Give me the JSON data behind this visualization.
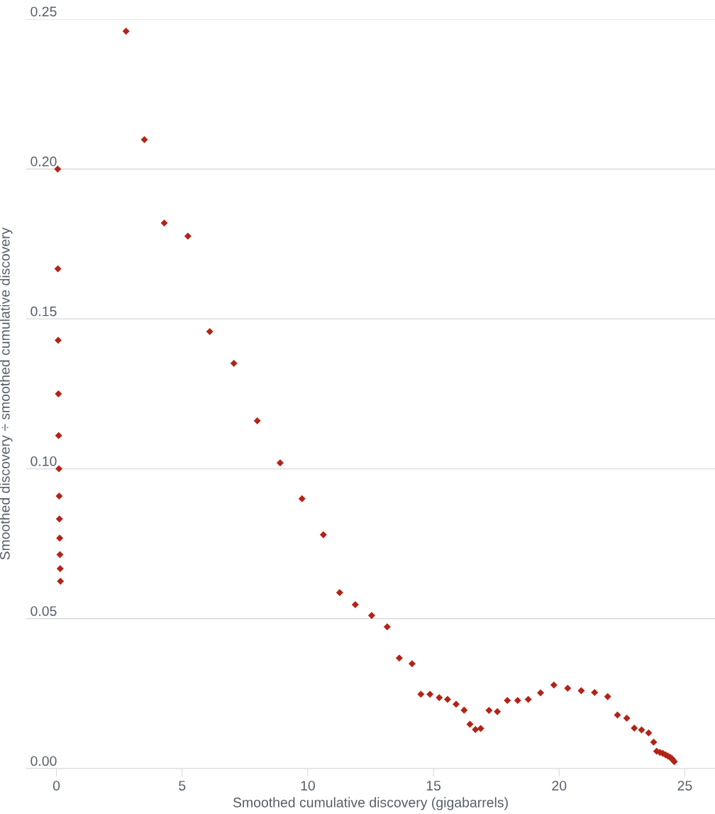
{
  "chart_data": {
    "type": "scatter",
    "xlabel": "Smoothed cumulative discovery (gigabarrels)",
    "ylabel": "Smoothed discovery ÷ smoothed cumulative discovery",
    "marker": "diamond",
    "grid": "y",
    "legend": false,
    "xlim": [
      -1.2,
      26.2
    ],
    "xticks": [
      0,
      5,
      10,
      15,
      20,
      25
    ],
    "ylim": [
      0,
      0.25
    ],
    "yticks": [
      {
        "value": 0,
        "label": "0.00"
      },
      {
        "value": 0.05,
        "label": "0.05"
      },
      {
        "value": 0.1,
        "label": "0.10"
      },
      {
        "value": 0.15,
        "label": "0.15"
      },
      {
        "value": 0.2,
        "label": "0.20"
      },
      {
        "value": 0.25,
        "label": "0.25"
      }
    ],
    "series": [
      {
        "color": "#b22418",
        "x": [
          0.05,
          0.06,
          0.07,
          0.08,
          0.09,
          0.1,
          0.11,
          0.12,
          0.13,
          0.14,
          0.15,
          0.16,
          2.77,
          3.5,
          4.29,
          5.23,
          6.1,
          7.06,
          7.99,
          8.9,
          9.77,
          10.62,
          11.27,
          11.89,
          12.54,
          13.16,
          13.64,
          14.15,
          14.5,
          14.86,
          15.23,
          15.56,
          15.9,
          16.22,
          16.45,
          16.67,
          16.88,
          17.21,
          17.54,
          17.94,
          18.35,
          18.77,
          19.26,
          19.79,
          20.34,
          20.88,
          21.41,
          21.93,
          22.32,
          22.69,
          22.99,
          23.28,
          23.56,
          23.76,
          23.88,
          24.01,
          24.12,
          24.23,
          24.32,
          24.41,
          24.48,
          24.54,
          24.58
        ],
        "values": [
          0.2,
          0.1667,
          0.1429,
          0.125,
          0.1111,
          0.1,
          0.0909,
          0.0833,
          0.0769,
          0.0714,
          0.0667,
          0.0625,
          0.246,
          0.2098,
          0.182,
          0.1776,
          0.1458,
          0.1352,
          0.116,
          0.102,
          0.09,
          0.078,
          0.0587,
          0.0547,
          0.0511,
          0.0473,
          0.0369,
          0.035,
          0.0248,
          0.0248,
          0.0237,
          0.0231,
          0.0215,
          0.0195,
          0.0148,
          0.013,
          0.0134,
          0.0194,
          0.019,
          0.0227,
          0.0227,
          0.0231,
          0.0253,
          0.0279,
          0.0268,
          0.026,
          0.0254,
          0.024,
          0.0179,
          0.0168,
          0.0135,
          0.0129,
          0.0119,
          0.0088,
          0.0058,
          0.0054,
          0.0051,
          0.0046,
          0.0042,
          0.0038,
          0.0034,
          0.0028,
          0.0023
        ]
      }
    ]
  }
}
